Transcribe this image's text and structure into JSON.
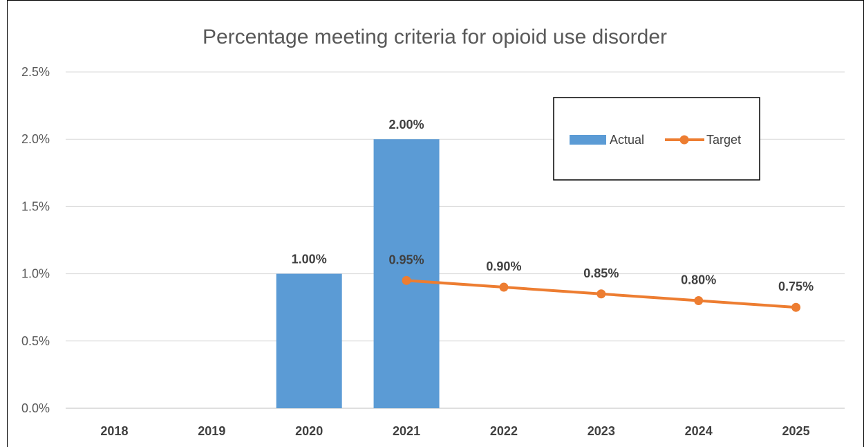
{
  "chart_data": {
    "type": "bar",
    "title": "Percentage meeting criteria for opioid use disorder",
    "categories": [
      "2018",
      "2019",
      "2020",
      "2021",
      "2022",
      "2023",
      "2024",
      "2025"
    ],
    "ylim": [
      0,
      0.025
    ],
    "yticks": [
      0,
      0.005,
      0.01,
      0.015,
      0.02,
      0.025
    ],
    "ytick_labels": [
      "0.0%",
      "0.5%",
      "1.0%",
      "1.5%",
      "2.0%",
      "2.5%"
    ],
    "grid": true,
    "legend_position": "top-right",
    "series": [
      {
        "name": "Actual",
        "type": "bar",
        "color": "#5B9BD5",
        "values": [
          null,
          null,
          0.01,
          0.02,
          null,
          null,
          null,
          null
        ],
        "labels": [
          null,
          null,
          "1.00%",
          "2.00%",
          null,
          null,
          null,
          null
        ]
      },
      {
        "name": "Target",
        "type": "line",
        "color": "#ED7D31",
        "values": [
          null,
          null,
          null,
          0.0095,
          0.009,
          0.0085,
          0.008,
          0.0075
        ],
        "labels": [
          null,
          null,
          null,
          "0.95%",
          "0.90%",
          "0.85%",
          "0.80%",
          "0.75%"
        ]
      }
    ]
  }
}
